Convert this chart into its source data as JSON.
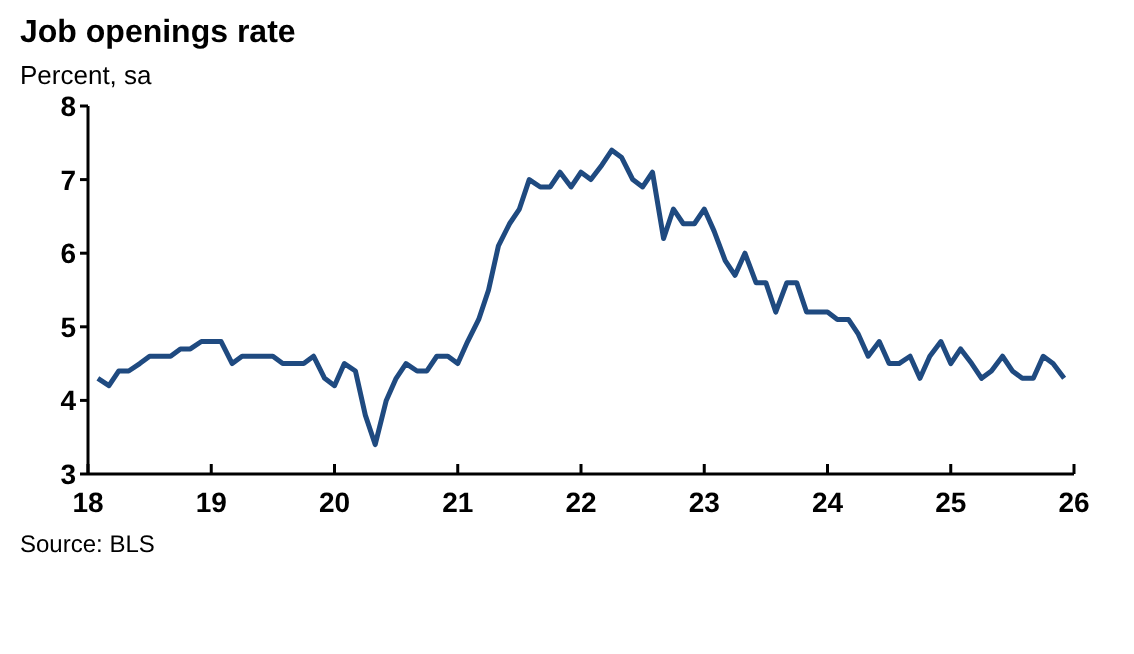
{
  "chart_data": {
    "type": "line",
    "title": "Job openings rate",
    "subtitle": "Percent, sa",
    "annotations": [
      "Source: BLS"
    ],
    "x": [
      18.08,
      18.17,
      18.25,
      18.33,
      18.42,
      18.5,
      18.58,
      18.67,
      18.75,
      18.83,
      18.92,
      19,
      19.08,
      19.17,
      19.25,
      19.33,
      19.42,
      19.5,
      19.58,
      19.67,
      19.75,
      19.83,
      19.92,
      20,
      20.08,
      20.17,
      20.25,
      20.33,
      20.42,
      20.5,
      20.58,
      20.67,
      20.75,
      20.83,
      20.92,
      21,
      21.08,
      21.17,
      21.25,
      21.33,
      21.42,
      21.5,
      21.58,
      21.67,
      21.75,
      21.83,
      21.92,
      22,
      22.08,
      22.17,
      22.25,
      22.33,
      22.42,
      22.5,
      22.58,
      22.67,
      22.75,
      22.83,
      22.92,
      23,
      23.08,
      23.17,
      23.25,
      23.33,
      23.42,
      23.5,
      23.58,
      23.67,
      23.75,
      23.83,
      23.92,
      24,
      24.08,
      24.17,
      24.25,
      24.33,
      24.42,
      24.5,
      24.58,
      24.67,
      24.75,
      24.83,
      24.92,
      25,
      25.08,
      25.17,
      25.25,
      25.33,
      25.42,
      25.5,
      25.58,
      25.67,
      25.75,
      25.83,
      25.92
    ],
    "series": [
      {
        "color": "#1f4a80",
        "values": [
          4.3,
          4.2,
          4.4,
          4.4,
          4.5,
          4.6,
          4.6,
          4.6,
          4.7,
          4.7,
          4.8,
          4.8,
          4.8,
          4.5,
          4.6,
          4.6,
          4.6,
          4.6,
          4.5,
          4.5,
          4.5,
          4.6,
          4.3,
          4.2,
          4.5,
          4.4,
          3.8,
          3.4,
          4.0,
          4.3,
          4.5,
          4.4,
          4.4,
          4.6,
          4.6,
          4.5,
          4.8,
          5.1,
          5.5,
          6.1,
          6.4,
          6.6,
          7.0,
          6.9,
          6.9,
          7.1,
          6.9,
          7.1,
          7.0,
          7.2,
          7.4,
          7.3,
          7.0,
          6.9,
          7.1,
          6.2,
          6.6,
          6.4,
          6.4,
          6.6,
          6.3,
          5.9,
          5.7,
          6.0,
          5.6,
          5.6,
          5.2,
          5.6,
          5.6,
          5.2,
          5.2,
          5.2,
          5.1,
          5.1,
          4.9,
          4.6,
          4.8,
          4.5,
          4.5,
          4.6,
          4.3,
          4.6,
          4.8,
          4.5,
          4.7,
          4.5,
          4.3,
          4.4,
          4.6,
          4.4,
          4.3,
          4.3,
          4.6,
          4.5,
          4.3
        ]
      }
    ],
    "xlim": [
      18,
      26
    ],
    "xticks": [
      18,
      19,
      20,
      21,
      22,
      23,
      24,
      25,
      26
    ],
    "ylim": [
      3,
      8
    ],
    "yticks": [
      3,
      4,
      5,
      6,
      7,
      8
    ],
    "grid": false,
    "legend": false,
    "marker": "none",
    "line_style": "solid"
  }
}
